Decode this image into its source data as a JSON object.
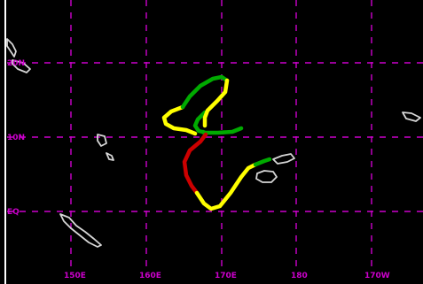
{
  "map": {
    "background": "#000000",
    "grid_color": "#cc00cc",
    "coast_color": "#d6d6d6",
    "longitude_labels": [
      "150E",
      "160E",
      "170E",
      "180",
      "170W"
    ],
    "latitude_labels": [
      "20N",
      "10N",
      "EQ"
    ],
    "track_colors": {
      "tropical_depression": "#00aa00",
      "tropical_storm": "#ffff00",
      "typhoon": "#cc0000"
    },
    "track_segments": [
      {
        "category": "tropical_depression",
        "color": "#00aa00"
      },
      {
        "category": "tropical_storm",
        "color": "#ffff00"
      },
      {
        "category": "typhoon",
        "color": "#cc0000"
      },
      {
        "category": "tropical_storm",
        "color": "#ffff00"
      },
      {
        "category": "tropical_depression",
        "color": "#00aa00"
      }
    ]
  }
}
